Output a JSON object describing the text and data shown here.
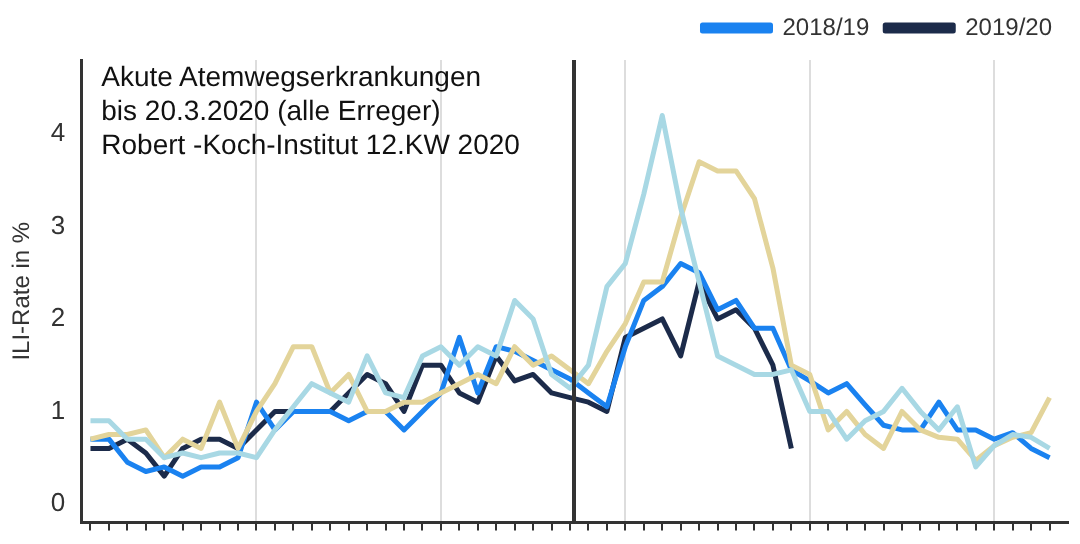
{
  "chart_data": {
    "type": "line",
    "ylabel": "ILI-Rate in %",
    "annotations": [
      "Akute Atemwegserkrankungen",
      "bis 20.3.2020 (alle Erreger)",
      "Robert -Koch-Institut 12.KW 2020"
    ],
    "categories": [
      null,
      null,
      null,
      null,
      null,
      null,
      null,
      null,
      null,
      null,
      null,
      null,
      null,
      null,
      null,
      null,
      null,
      null,
      null,
      null,
      null,
      null,
      null,
      null,
      null,
      null,
      null,
      null,
      null,
      null,
      null,
      null,
      null,
      null,
      null,
      null,
      null,
      null,
      null,
      null,
      null,
      null,
      null,
      null,
      null,
      null,
      null,
      null,
      null,
      null,
      null,
      null,
      null
    ],
    "ylim": [
      -0.2,
      4.8
    ],
    "yticks": [
      0,
      1,
      2,
      3,
      4
    ],
    "grid": "x",
    "legend": "top right",
    "tick_labels": "y",
    "marker": "none",
    "line_style": "solid",
    "series": [
      {
        "color": "#a8d8e4",
        "values": [
          0.9,
          0.9,
          0.7,
          0.7,
          0.5,
          0.55,
          0.5,
          0.55,
          0.55,
          0.5,
          0.8,
          1.05,
          1.3,
          1.2,
          1.1,
          1.6,
          1.2,
          1.15,
          1.6,
          1.7,
          1.5,
          1.7,
          1.6,
          2.2,
          2.0,
          1.4,
          1.25,
          1.5,
          2.35,
          2.6,
          3.35,
          4.2,
          3.2,
          2.4,
          1.6,
          1.5,
          1.4,
          1.4,
          1.45,
          1.0,
          1.0,
          0.7,
          0.9,
          1.0,
          1.25,
          1.0,
          0.8,
          1.05,
          0.4,
          0.63,
          0.75,
          0.72,
          0.6
        ]
      },
      {
        "color": "#e3d49a",
        "values": [
          0.7,
          0.75,
          0.75,
          0.8,
          0.5,
          0.7,
          0.6,
          1.1,
          0.6,
          1.0,
          1.3,
          1.7,
          1.7,
          1.2,
          1.4,
          1.0,
          1.0,
          1.1,
          1.1,
          1.2,
          1.3,
          1.4,
          1.3,
          1.7,
          1.5,
          1.6,
          1.45,
          1.3,
          1.65,
          1.95,
          2.4,
          2.4,
          3.1,
          3.7,
          3.6,
          3.6,
          3.3,
          2.55,
          1.5,
          1.4,
          0.8,
          1.0,
          0.75,
          0.6,
          1.0,
          0.8,
          0.72,
          0.7,
          0.47,
          0.63,
          0.72,
          0.77,
          1.15
        ]
      },
      {
        "name": "2018/19",
        "color": "#1a82f0",
        "values": [
          0.7,
          0.7,
          0.45,
          0.35,
          0.4,
          0.3,
          0.4,
          0.4,
          0.5,
          1.1,
          0.8,
          1.0,
          1.0,
          1.0,
          0.9,
          1.0,
          1.0,
          0.8,
          1.0,
          1.2,
          1.8,
          1.2,
          1.7,
          1.65,
          1.55,
          1.45,
          1.35,
          1.2,
          1.05,
          1.7,
          2.2,
          2.35,
          2.6,
          2.5,
          2.1,
          2.2,
          1.9,
          1.9,
          1.45,
          1.33,
          1.2,
          1.3,
          1.07,
          0.85,
          0.8,
          0.8,
          1.1,
          0.8,
          0.8,
          0.7,
          0.77,
          0.6,
          0.5
        ]
      },
      {
        "name": "2019/20",
        "color": "#1c2b4a",
        "values": [
          0.6,
          0.6,
          0.7,
          0.55,
          0.3,
          0.6,
          0.7,
          0.7,
          0.6,
          0.8,
          1.0,
          1.0,
          1.0,
          1.0,
          1.2,
          1.4,
          1.3,
          1.0,
          1.5,
          1.5,
          1.2,
          1.1,
          1.6,
          1.33,
          1.4,
          1.2,
          1.15,
          1.1,
          1.0,
          1.8,
          1.9,
          2.0,
          1.6,
          2.4,
          2.0,
          2.1,
          1.9,
          1.5,
          0.6,
          null,
          null,
          null,
          null,
          null,
          null,
          null,
          null,
          null,
          null,
          null,
          null,
          null,
          null
        ]
      }
    ]
  }
}
